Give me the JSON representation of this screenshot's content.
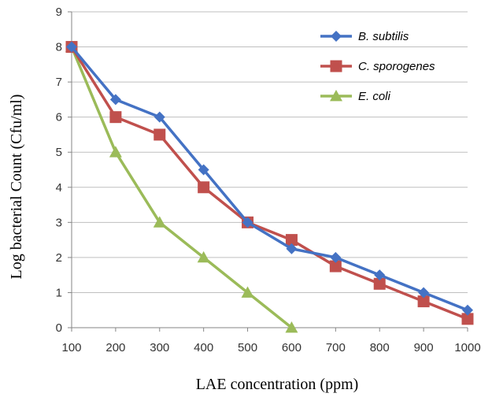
{
  "chart_data": {
    "type": "line",
    "xlabel": "LAE concentration (ppm)",
    "ylabel": "Log bacterial Count (Cfu/ml)",
    "x": [
      100,
      200,
      300,
      400,
      500,
      600,
      700,
      800,
      900,
      1000
    ],
    "x_ticks": [
      "100",
      "200",
      "300",
      "400",
      "500",
      "600",
      "700",
      "800",
      "900",
      "1000"
    ],
    "y_ticks": [
      "0",
      "1",
      "2",
      "3",
      "4",
      "5",
      "6",
      "7",
      "8",
      "9"
    ],
    "xlim": [
      100,
      1000
    ],
    "ylim": [
      0,
      9
    ],
    "grid": "horizontal",
    "legend_position": "top-right",
    "series": [
      {
        "name": "B. subtilis",
        "color": "#4472C4",
        "marker": "diamond",
        "x": [
          100,
          200,
          300,
          400,
          500,
          600,
          700,
          800,
          900,
          1000
        ],
        "values": [
          8,
          6.5,
          6,
          4.5,
          3,
          2.25,
          2,
          1.5,
          1,
          0.5
        ]
      },
      {
        "name": "C. sporogenes",
        "color": "#C0504D",
        "marker": "square",
        "x": [
          100,
          200,
          300,
          400,
          500,
          600,
          700,
          800,
          900,
          1000
        ],
        "values": [
          8,
          6,
          5.5,
          4,
          3,
          2.5,
          1.75,
          1.25,
          0.75,
          0.25
        ]
      },
      {
        "name": "E. coli",
        "color": "#9BBB59",
        "marker": "triangle",
        "x": [
          100,
          200,
          300,
          400,
          500,
          600
        ],
        "values": [
          8,
          5,
          3,
          2,
          1,
          0
        ]
      }
    ]
  }
}
